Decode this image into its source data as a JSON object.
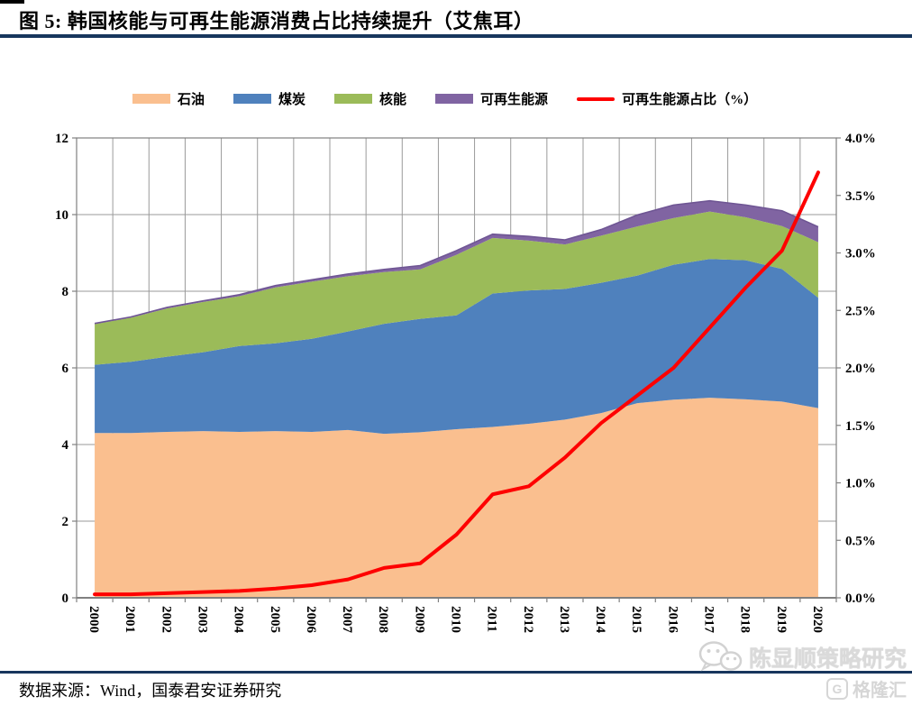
{
  "header": {
    "title": "图 5:  韩国核能与可再生能源消费占比持续提升（艾焦耳）"
  },
  "footer": {
    "source": "数据来源：Wind，国泰君安证券研究"
  },
  "watermark": {
    "line1": "陈显顺策略研究",
    "logo_letter": "G",
    "logo_text": "格隆汇",
    "wechat_icon": "wechat-logo"
  },
  "colors": {
    "rule_navy": "#17365D",
    "grid": "#9a9a9a",
    "axis": "#808080",
    "oil": "#FABF8F",
    "coal": "#4F81BD",
    "nuclear": "#9BBB59",
    "renewables": "#8064A2",
    "renewables_edge": "#6F5694",
    "share_line": "#FE0000"
  },
  "chart_data": {
    "type": "area",
    "stacked": true,
    "grid": true,
    "legend_position": "top",
    "title": "韩国核能与可再生能源消费占比持续提升（艾焦耳）",
    "x": [
      "2000",
      "2001",
      "2002",
      "2003",
      "2004",
      "2005",
      "2006",
      "2007",
      "2008",
      "2009",
      "2010",
      "2011",
      "2012",
      "2013",
      "2014",
      "2015",
      "2016",
      "2017",
      "2018",
      "2019",
      "2020"
    ],
    "series": [
      {
        "name": "石油",
        "type": "area",
        "axis": "left",
        "color": "#FABF8F",
        "values": [
          4.3,
          4.3,
          4.33,
          4.35,
          4.33,
          4.35,
          4.33,
          4.38,
          4.28,
          4.32,
          4.4,
          4.46,
          4.54,
          4.65,
          4.82,
          5.08,
          5.17,
          5.22,
          5.18,
          5.12,
          4.95
        ]
      },
      {
        "name": "煤炭",
        "type": "area",
        "axis": "left",
        "color": "#4F81BD",
        "values": [
          1.78,
          1.86,
          1.96,
          2.06,
          2.24,
          2.29,
          2.43,
          2.57,
          2.87,
          2.96,
          2.97,
          3.48,
          3.48,
          3.41,
          3.4,
          3.33,
          3.52,
          3.62,
          3.63,
          3.46,
          2.88
        ]
      },
      {
        "name": "核能",
        "type": "area",
        "axis": "left",
        "color": "#9BBB59",
        "values": [
          1.06,
          1.15,
          1.26,
          1.31,
          1.3,
          1.46,
          1.49,
          1.44,
          1.35,
          1.29,
          1.58,
          1.45,
          1.3,
          1.16,
          1.23,
          1.28,
          1.22,
          1.24,
          1.12,
          1.12,
          1.45
        ]
      },
      {
        "name": "可再生能源",
        "type": "area",
        "axis": "left",
        "color": "#8064A2",
        "values": [
          0.02,
          0.02,
          0.03,
          0.03,
          0.04,
          0.05,
          0.05,
          0.06,
          0.07,
          0.1,
          0.11,
          0.1,
          0.11,
          0.12,
          0.16,
          0.3,
          0.34,
          0.28,
          0.32,
          0.4,
          0.4
        ]
      },
      {
        "name": "可再生能源占比（%）",
        "type": "line",
        "axis": "right",
        "color": "#FE0000",
        "values": [
          0.03,
          0.03,
          0.04,
          0.05,
          0.06,
          0.08,
          0.11,
          0.16,
          0.26,
          0.3,
          0.55,
          0.9,
          0.97,
          1.22,
          1.52,
          1.76,
          2.0,
          2.35,
          2.7,
          3.02,
          3.7
        ]
      }
    ],
    "y_left": {
      "min": 0,
      "max": 12,
      "tick_step": 2,
      "labels": [
        "0",
        "2",
        "4",
        "6",
        "8",
        "10",
        "12"
      ]
    },
    "y_right": {
      "min": 0,
      "max": 4,
      "tick_step": 0.5,
      "labels": [
        "0.0%",
        "0.5%",
        "1.0%",
        "1.5%",
        "2.0%",
        "2.5%",
        "3.0%",
        "3.5%",
        "4.0%"
      ]
    }
  }
}
